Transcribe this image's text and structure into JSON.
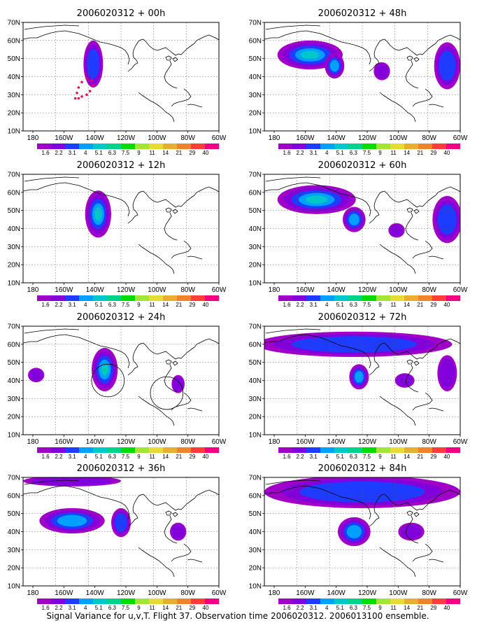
{
  "figure": {
    "caption": "Signal Variance for u,v,T. Flight 37. Observation time 2006020312. 2006013100 ensemble."
  },
  "colorbar": {
    "labels": [
      "1.6",
      "2.2",
      "3.1",
      "4",
      "5.1",
      "6.3",
      "7.5",
      "9",
      "11",
      "14",
      "21",
      "29",
      "40"
    ],
    "colors": [
      "#a000c8",
      "#8200dc",
      "#1e3cff",
      "#00a0ff",
      "#00c8c8",
      "#00d28c",
      "#00dc00",
      "#a0e632",
      "#e6dc32",
      "#e6af2d",
      "#f08228",
      "#fa3c3c",
      "#f00082"
    ]
  },
  "map": {
    "lat_labels": [
      "70N",
      "60N",
      "50N",
      "40N",
      "30N",
      "20N",
      "10N"
    ],
    "lon_labels": [
      "180",
      "160W",
      "140W",
      "120W",
      "100W",
      "80W",
      "60W"
    ]
  },
  "panels": [
    {
      "title": "2006020312 + 00h",
      "blobs": [
        {
          "lon": -137,
          "lat": 47,
          "w": 12,
          "h": 26,
          "level": 3
        }
      ],
      "flight_track": [
        [
          -148,
          28
        ],
        [
          -147,
          31
        ],
        [
          -146,
          34
        ],
        [
          -144,
          37
        ],
        [
          -141,
          39
        ],
        [
          -138,
          38
        ],
        [
          -137,
          35
        ],
        [
          -139,
          32
        ],
        [
          -141,
          30
        ],
        [
          -144,
          29
        ],
        [
          -146,
          28
        ]
      ]
    },
    {
      "title": "2006020312 + 48h",
      "blobs": [
        {
          "lon": -152,
          "lat": 52,
          "w": 40,
          "h": 16,
          "level": 5
        },
        {
          "lon": -137,
          "lat": 46,
          "w": 12,
          "h": 14,
          "level": 4
        },
        {
          "lon": -68,
          "lat": 46,
          "w": 16,
          "h": 26,
          "level": 3
        },
        {
          "lon": -108,
          "lat": 43,
          "w": 10,
          "h": 10,
          "level": 2
        }
      ]
    },
    {
      "title": "2006020312 + 12h",
      "blobs": [
        {
          "lon": -134,
          "lat": 48,
          "w": 16,
          "h": 26,
          "level": 5
        }
      ]
    },
    {
      "title": "2006020312 + 60h",
      "blobs": [
        {
          "lon": -148,
          "lat": 56,
          "w": 48,
          "h": 16,
          "level": 5
        },
        {
          "lon": -125,
          "lat": 45,
          "w": 14,
          "h": 14,
          "level": 4
        },
        {
          "lon": -68,
          "lat": 45,
          "w": 18,
          "h": 26,
          "level": 3
        },
        {
          "lon": -99,
          "lat": 39,
          "w": 10,
          "h": 8,
          "level": 2
        }
      ]
    },
    {
      "title": "2006020312 + 24h",
      "blobs": [
        {
          "lon": -130,
          "lat": 46,
          "w": 16,
          "h": 24,
          "level": 6
        },
        {
          "lon": -172,
          "lat": 43,
          "w": 10,
          "h": 8,
          "level": 2
        },
        {
          "lon": -85,
          "lat": 38,
          "w": 8,
          "h": 10,
          "level": 2
        }
      ],
      "circles": [
        {
          "lon": -128,
          "lat": 40,
          "r": 10
        },
        {
          "lon": -92,
          "lat": 33,
          "r": 10
        }
      ]
    },
    {
      "title": "2006020312 + 72h",
      "blobs": [
        {
          "lon": -125,
          "lat": 60,
          "w": 120,
          "h": 14,
          "level": 3
        },
        {
          "lon": -122,
          "lat": 42,
          "w": 12,
          "h": 14,
          "level": 4
        },
        {
          "lon": -94,
          "lat": 40,
          "w": 12,
          "h": 8,
          "level": 2
        },
        {
          "lon": -68,
          "lat": 44,
          "w": 12,
          "h": 20,
          "level": 2
        }
      ]
    },
    {
      "title": "2006020312 + 36h",
      "blobs": [
        {
          "lon": -150,
          "lat": 46,
          "w": 40,
          "h": 14,
          "level": 4
        },
        {
          "lon": -120,
          "lat": 45,
          "w": 12,
          "h": 16,
          "level": 3
        },
        {
          "lon": -150,
          "lat": 68,
          "w": 60,
          "h": 6,
          "level": 2
        },
        {
          "lon": -85,
          "lat": 40,
          "w": 10,
          "h": 10,
          "level": 2
        }
      ]
    },
    {
      "title": "2006020312 + 84h",
      "blobs": [
        {
          "lon": -120,
          "lat": 62,
          "w": 120,
          "h": 18,
          "level": 3
        },
        {
          "lon": -125,
          "lat": 40,
          "w": 20,
          "h": 16,
          "level": 4
        },
        {
          "lon": -90,
          "lat": 40,
          "w": 16,
          "h": 10,
          "level": 2
        }
      ]
    }
  ]
}
